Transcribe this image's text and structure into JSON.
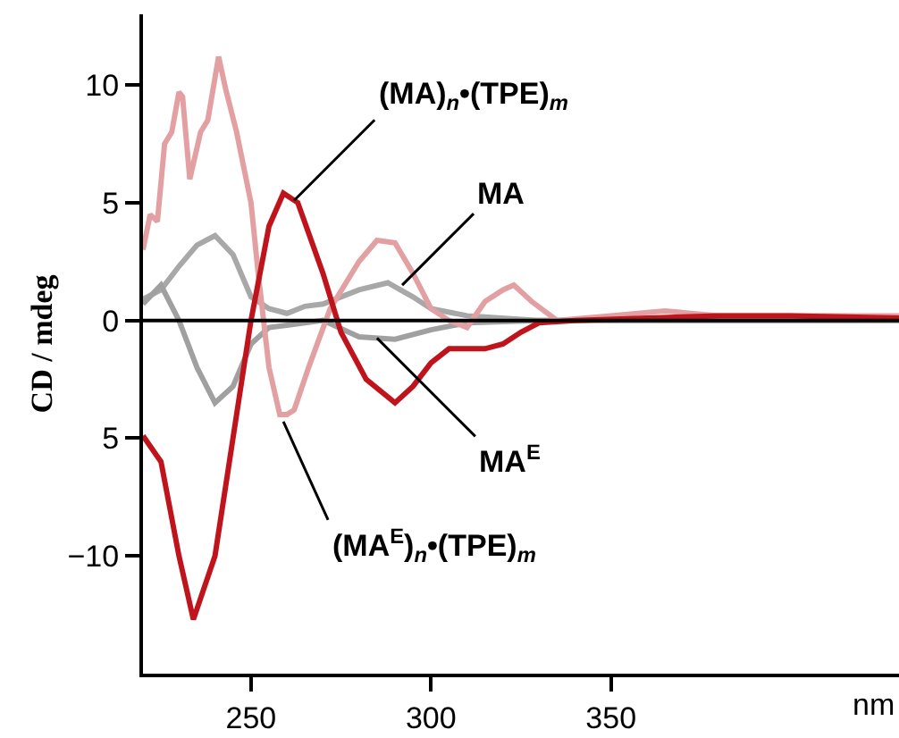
{
  "chart_data": {
    "type": "line",
    "xlabel": "nm",
    "ylabel": "CD / mdeg",
    "xlim": [
      220,
      430
    ],
    "xticks": [
      250,
      300,
      350
    ],
    "ylim": [
      -15,
      13
    ],
    "yticks": [
      {
        "value": -10,
        "label": "−10"
      },
      {
        "value": -5,
        "label": "5"
      },
      0,
      5,
      10
    ],
    "legend": false,
    "marker": "none",
    "line_style": "solid",
    "ref_lines": [
      {
        "axis": "y",
        "value": 0,
        "color": "#000000"
      }
    ],
    "series": [
      {
        "color": "#a8a8a8",
        "x": [
          220,
          225,
          230,
          235,
          240,
          245,
          250,
          255,
          260,
          265,
          270,
          280,
          288,
          295,
          300,
          310,
          330,
          360,
          430
        ],
        "values": [
          0.9,
          1.3,
          2.3,
          3.2,
          3.6,
          2.8,
          1.0,
          0.5,
          0.3,
          0.6,
          0.7,
          1.3,
          1.6,
          1.0,
          0.5,
          0.2,
          0,
          0,
          0
        ]
      },
      {
        "color": "#a0a0a0",
        "x": [
          220,
          225,
          230,
          235,
          240,
          245,
          250,
          255,
          260,
          270,
          280,
          290,
          300,
          310,
          330,
          430
        ],
        "values": [
          0.7,
          1.5,
          0,
          -2,
          -3.5,
          -2.8,
          -1,
          -0.3,
          -0.2,
          0,
          -0.7,
          -0.8,
          -0.4,
          -0.1,
          0,
          0
        ]
      },
      {
        "color": "#e3a0a3",
        "x": [
          220,
          222,
          224,
          226,
          228,
          230,
          231,
          233,
          236,
          238,
          241,
          243,
          246,
          250,
          252,
          255,
          258,
          260,
          262,
          266,
          272,
          280,
          285,
          290,
          295,
          300,
          305,
          310,
          315,
          320,
          323,
          328,
          335,
          350,
          365,
          380,
          400,
          430
        ],
        "values": [
          3,
          4.5,
          4.2,
          7.5,
          8,
          9.7,
          9.5,
          6,
          8,
          8.5,
          11.2,
          9.8,
          8,
          5,
          2,
          -2,
          -4,
          -4,
          -3.8,
          -2,
          0.5,
          2.5,
          3.4,
          3.3,
          2,
          0.5,
          0,
          -0.3,
          0.8,
          1.3,
          1.5,
          0.8,
          0,
          0.2,
          0.4,
          0.2,
          0.2,
          0.2
        ]
      },
      {
        "color": "#c0141c",
        "x": [
          220,
          225,
          230,
          234,
          240,
          245,
          250,
          255,
          259,
          263,
          270,
          275,
          282,
          290,
          295,
          300,
          305,
          315,
          320,
          325,
          330,
          340,
          360,
          380,
          400,
          430
        ],
        "values": [
          -4.9,
          -6,
          -10,
          -12.7,
          -10,
          -5,
          0,
          4,
          5.4,
          5,
          2,
          -0.5,
          -2.5,
          -3.5,
          -2.8,
          -1.8,
          -1.2,
          -1.2,
          -1,
          -0.5,
          -0.1,
          0,
          0.1,
          0.2,
          0.2,
          0.1
        ]
      }
    ],
    "annotations": [
      {
        "text": "(MA)$_{n}$•(TPE)$_{m}$",
        "x": 262,
        "y": 5.1
      },
      {
        "text": "MA",
        "x": 292,
        "y": 1.5
      },
      {
        "text": "MA$^{E}$",
        "x": 285,
        "y": -0.75
      },
      {
        "text": "(MA$^{E}$)$_{n}$•(TPE)$_{m}$",
        "x": 259,
        "y": -4.3
      }
    ]
  }
}
